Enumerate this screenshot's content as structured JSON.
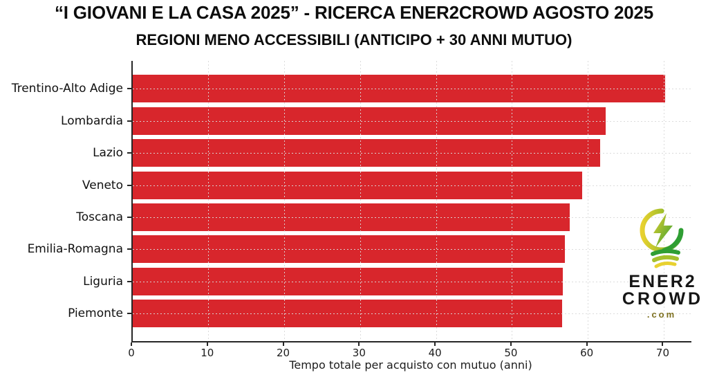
{
  "header": {
    "title": "“I GIOVANI E LA CASA 2025” - RICERCA ENER2CROWD AGOSTO 2025",
    "subtitle": "REGIONI MENO ACCESSIBILI (ANTICIPO + 30 ANNI MUTUO)"
  },
  "chart_data": {
    "type": "bar",
    "orientation": "horizontal",
    "title": "REGIONI MENO ACCESSIBILI (ANTICIPO + 30 ANNI MUTUO)",
    "categories": [
      "Trentino-Alto Adige",
      "Lombardia",
      "Lazio",
      "Veneto",
      "Toscana",
      "Emilia-Romagna",
      "Liguria",
      "Piemonte"
    ],
    "values": [
      70.1,
      62.3,
      61.6,
      59.2,
      57.6,
      56.9,
      56.7,
      56.6
    ],
    "xlabel": "Tempo totale per acquisto con mutuo (anni)",
    "xticks": [
      0,
      10,
      20,
      30,
      40,
      50,
      60,
      70
    ],
    "xlim": [
      0,
      73.6
    ],
    "bar_color": "#d8262c",
    "grid": {
      "style": "dashed",
      "color": "#d9d9d9",
      "on": true
    },
    "axis_color": "#262626",
    "legend": "none"
  },
  "logo": {
    "line1": "ENER2",
    "line2": "CROWD",
    "line3": ".com",
    "colors": {
      "yellow": "#e8d12f",
      "yellow_green": "#a6c02c",
      "green": "#2f9e33",
      "text": "#151515",
      "com": "#7d7020"
    }
  }
}
